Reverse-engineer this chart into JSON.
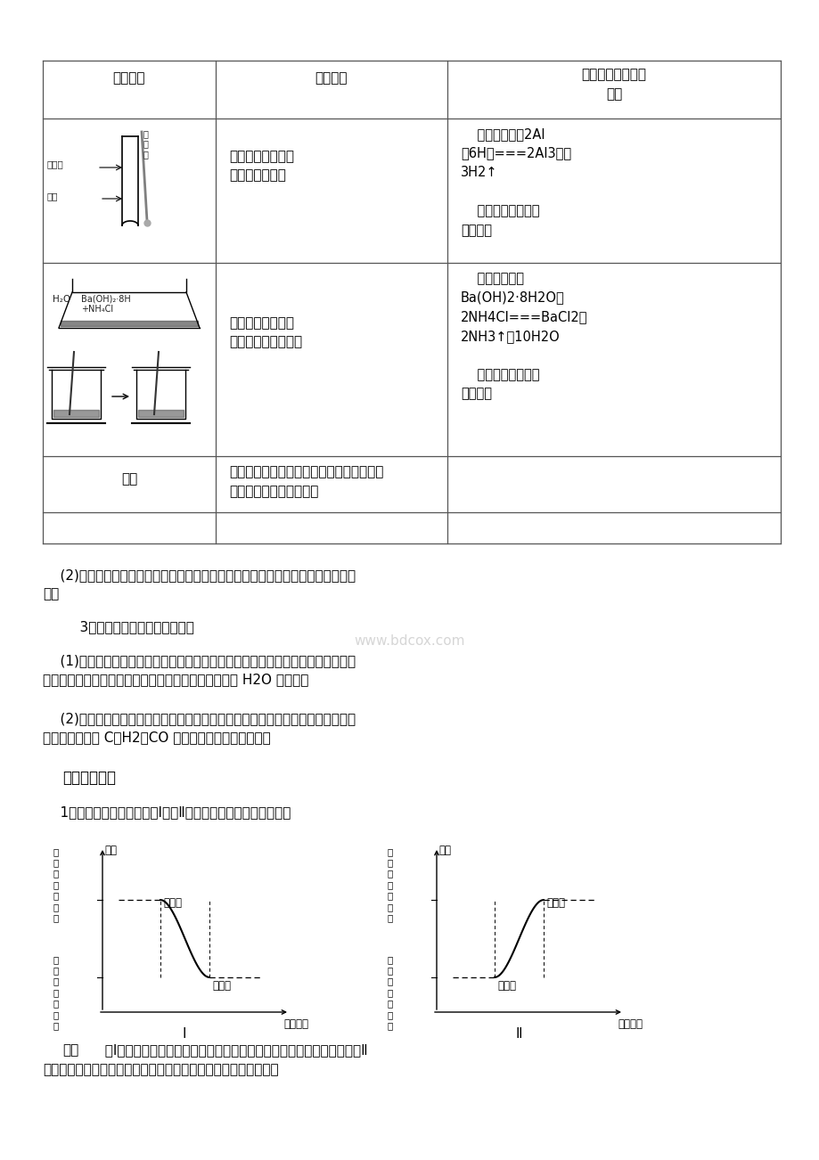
{
  "bg_color": "#ffffff",
  "table": {
    "header_col1": "实验操作",
    "header_col2": "实验现象",
    "header_col3": "有关化学方程式及\n结论",
    "row1_phenomenon": "产生大量气泡，混\n合液的温度升高",
    "row1_conclusion": "    离子方程式：2Al\n＋6H＋===2Al3＋＋\n3H2↑\n\n    结论：反应过程中\n释放热量",
    "row2_phenomenon": "有刺激性气味气体\n产生，烧杯温度降低",
    "row2_conclusion": "    化学方程式：\nBa(OH)2·8H2O＋\n2NH4Cl===BaCl2＋\n2NH3↑＋10H2O\n\n    结论：反应过程中\n吸收热量",
    "row3_left": "结论",
    "row3_content": "每一个化学反应都伴随着能量的变化，有的\n释放能量，有的吸收能量"
  },
  "para1": "    (2)概念：有热量放出的化学反应称为放热反应，吸收热量的化学反应称为吸热反\n应。",
  "para2": "    3．常见的放热反应和吸热反应",
  "para3": "    (1)常见的放热反应：所有的燃烧反应，剧烈的发光、发热的化学反应；酸碱中和\n反应；大多数的化合反应；铝热反应；活泼金属与酸或 H2O 的反应。",
  "para4": "    (2)常见的吸热反应：氢氧化钡与氯化铵晶体的反应；大多数的分解反应；碳与水\n蒸气的反应；以 C、H2、CO 为还原剂的氧化还原反应。",
  "heading": "【自主思考】",
  "question": "    1．根据下列图像，分析图Ⅰ、图Ⅱ中能量的变化，并说明理由。",
  "hint_label": "提示",
  "hint_text1": "  图Ⅰ中反应物内部的总能量大于生成物内部的总能量，反应释放能量；图Ⅱ",
  "hint_text2": "中反应物内部的总能量小于生成物内部的总能量，反应吸收能量。",
  "watermark": "www.bdcox.com",
  "diag1_ylabel_top": "反\n应\n物\n的\n总\n能\n量",
  "diag1_ylabel_bot": "生\n成\n物\n的\n总\n能\n量",
  "diag1_reactant": "反应物",
  "diag1_product": "生成物",
  "diag2_ylabel_top": "生\n成\n物\n的\n总\n能\n量",
  "diag2_ylabel_bot": "反\n应\n物\n的\n总\n能\n量",
  "diag2_reactant": "反应物",
  "diag2_product": "生成物",
  "energy_label": "能量",
  "process_label": "反应过程",
  "diag1_num": "Ⅰ",
  "diag2_num": "Ⅱ"
}
